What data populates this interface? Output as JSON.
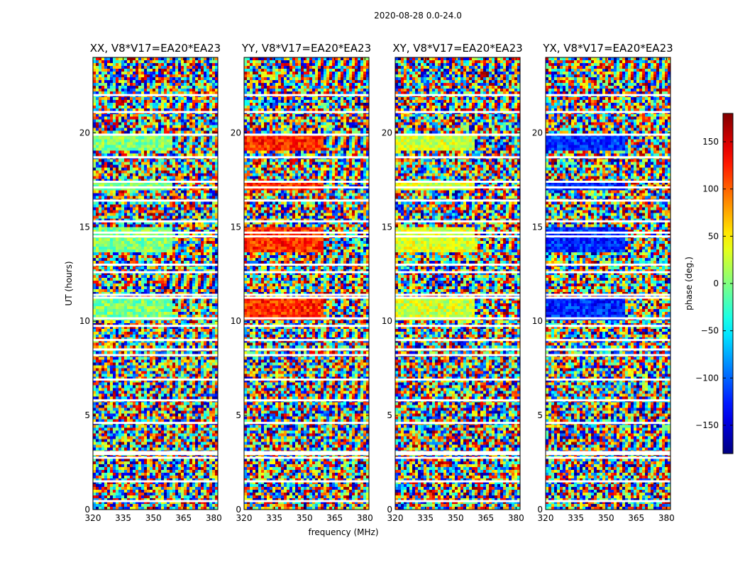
{
  "chart_data": {
    "type": "heatmap",
    "suptitle": "2020-08-28 0.0-24.0",
    "xlabel": "frequency (MHz)",
    "ylabel": "UT (hours)",
    "x_range": [
      320,
      382
    ],
    "y_range": [
      0,
      24
    ],
    "x_ticks": [
      "320",
      "335",
      "350",
      "365",
      "380"
    ],
    "x_tick_values": [
      320,
      335,
      350,
      365,
      380
    ],
    "y_ticks": [
      "0",
      "5",
      "10",
      "15",
      "20"
    ],
    "y_tick_values": [
      0,
      5,
      10,
      15,
      20
    ],
    "colorbar": {
      "label": "phase (deg.)",
      "range": [
        -180,
        180
      ],
      "ticks": [
        "150",
        "100",
        "50",
        "0",
        "−50",
        "−100",
        "−150"
      ],
      "tick_values": [
        150,
        100,
        50,
        0,
        -50,
        -100,
        -150
      ],
      "colormap": "jet"
    },
    "panels": [
      {
        "title": "XX, V8*V17=EA20*EA23",
        "coherent_phase_deg": 0
      },
      {
        "title": "YY, V8*V17=EA20*EA23",
        "coherent_phase_deg": 120
      },
      {
        "title": "XY, V8*V17=EA20*EA23",
        "coherent_phase_deg": 30
      },
      {
        "title": "YX, V8*V17=EA20*EA23",
        "coherent_phase_deg": -120
      }
    ],
    "flagged_ut_hours": [
      0.45,
      1.5,
      2.75,
      2.95,
      3.05,
      4.6,
      5.8,
      6.9,
      8.2,
      8.5,
      9.0,
      9.75,
      10.15,
      11.25,
      11.4,
      12.6,
      13.0,
      14.5,
      14.7,
      15.3,
      16.4,
      17.1,
      17.4,
      18.7,
      19.9,
      21.1,
      22.0
    ],
    "coherent_ut_bands": [
      [
        19.0,
        20.0
      ],
      [
        10.1,
        11.2
      ],
      [
        13.6,
        15.0
      ],
      [
        17.0,
        17.4
      ]
    ]
  }
}
